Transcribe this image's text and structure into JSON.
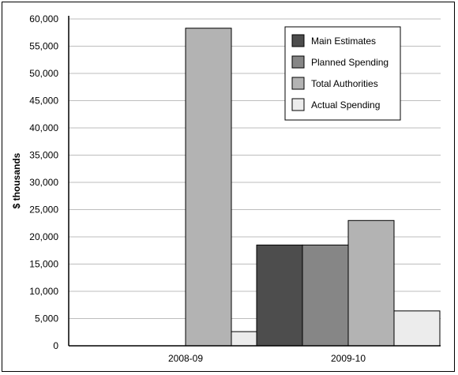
{
  "chart_data": {
    "type": "bar",
    "categories": [
      "2008-09",
      "2009-10"
    ],
    "series": [
      {
        "name": "Main Estimates",
        "color": "#4d4d4d",
        "values": [
          null,
          18500
        ]
      },
      {
        "name": "Planned Spending",
        "color": "#868686",
        "values": [
          null,
          18500
        ]
      },
      {
        "name": "Total Authorities",
        "color": "#b3b3b3",
        "values": [
          58300,
          23000
        ]
      },
      {
        "name": "Actual Spending",
        "color": "#ececec",
        "values": [
          2600,
          6400
        ]
      }
    ],
    "title": "",
    "xlabel": "",
    "ylabel": "$ thousands",
    "ylim": [
      0,
      60000
    ],
    "yticks": [
      0,
      5000,
      10000,
      15000,
      20000,
      25000,
      30000,
      35000,
      40000,
      45000,
      50000,
      55000,
      60000
    ],
    "ytick_labels": [
      "0",
      "5,000",
      "10,000",
      "15,000",
      "20,000",
      "25,000",
      "30,000",
      "35,000",
      "40,000",
      "45,000",
      "50,000",
      "55,000",
      "60,000"
    ],
    "grid": true,
    "legend_position": "top-right"
  }
}
